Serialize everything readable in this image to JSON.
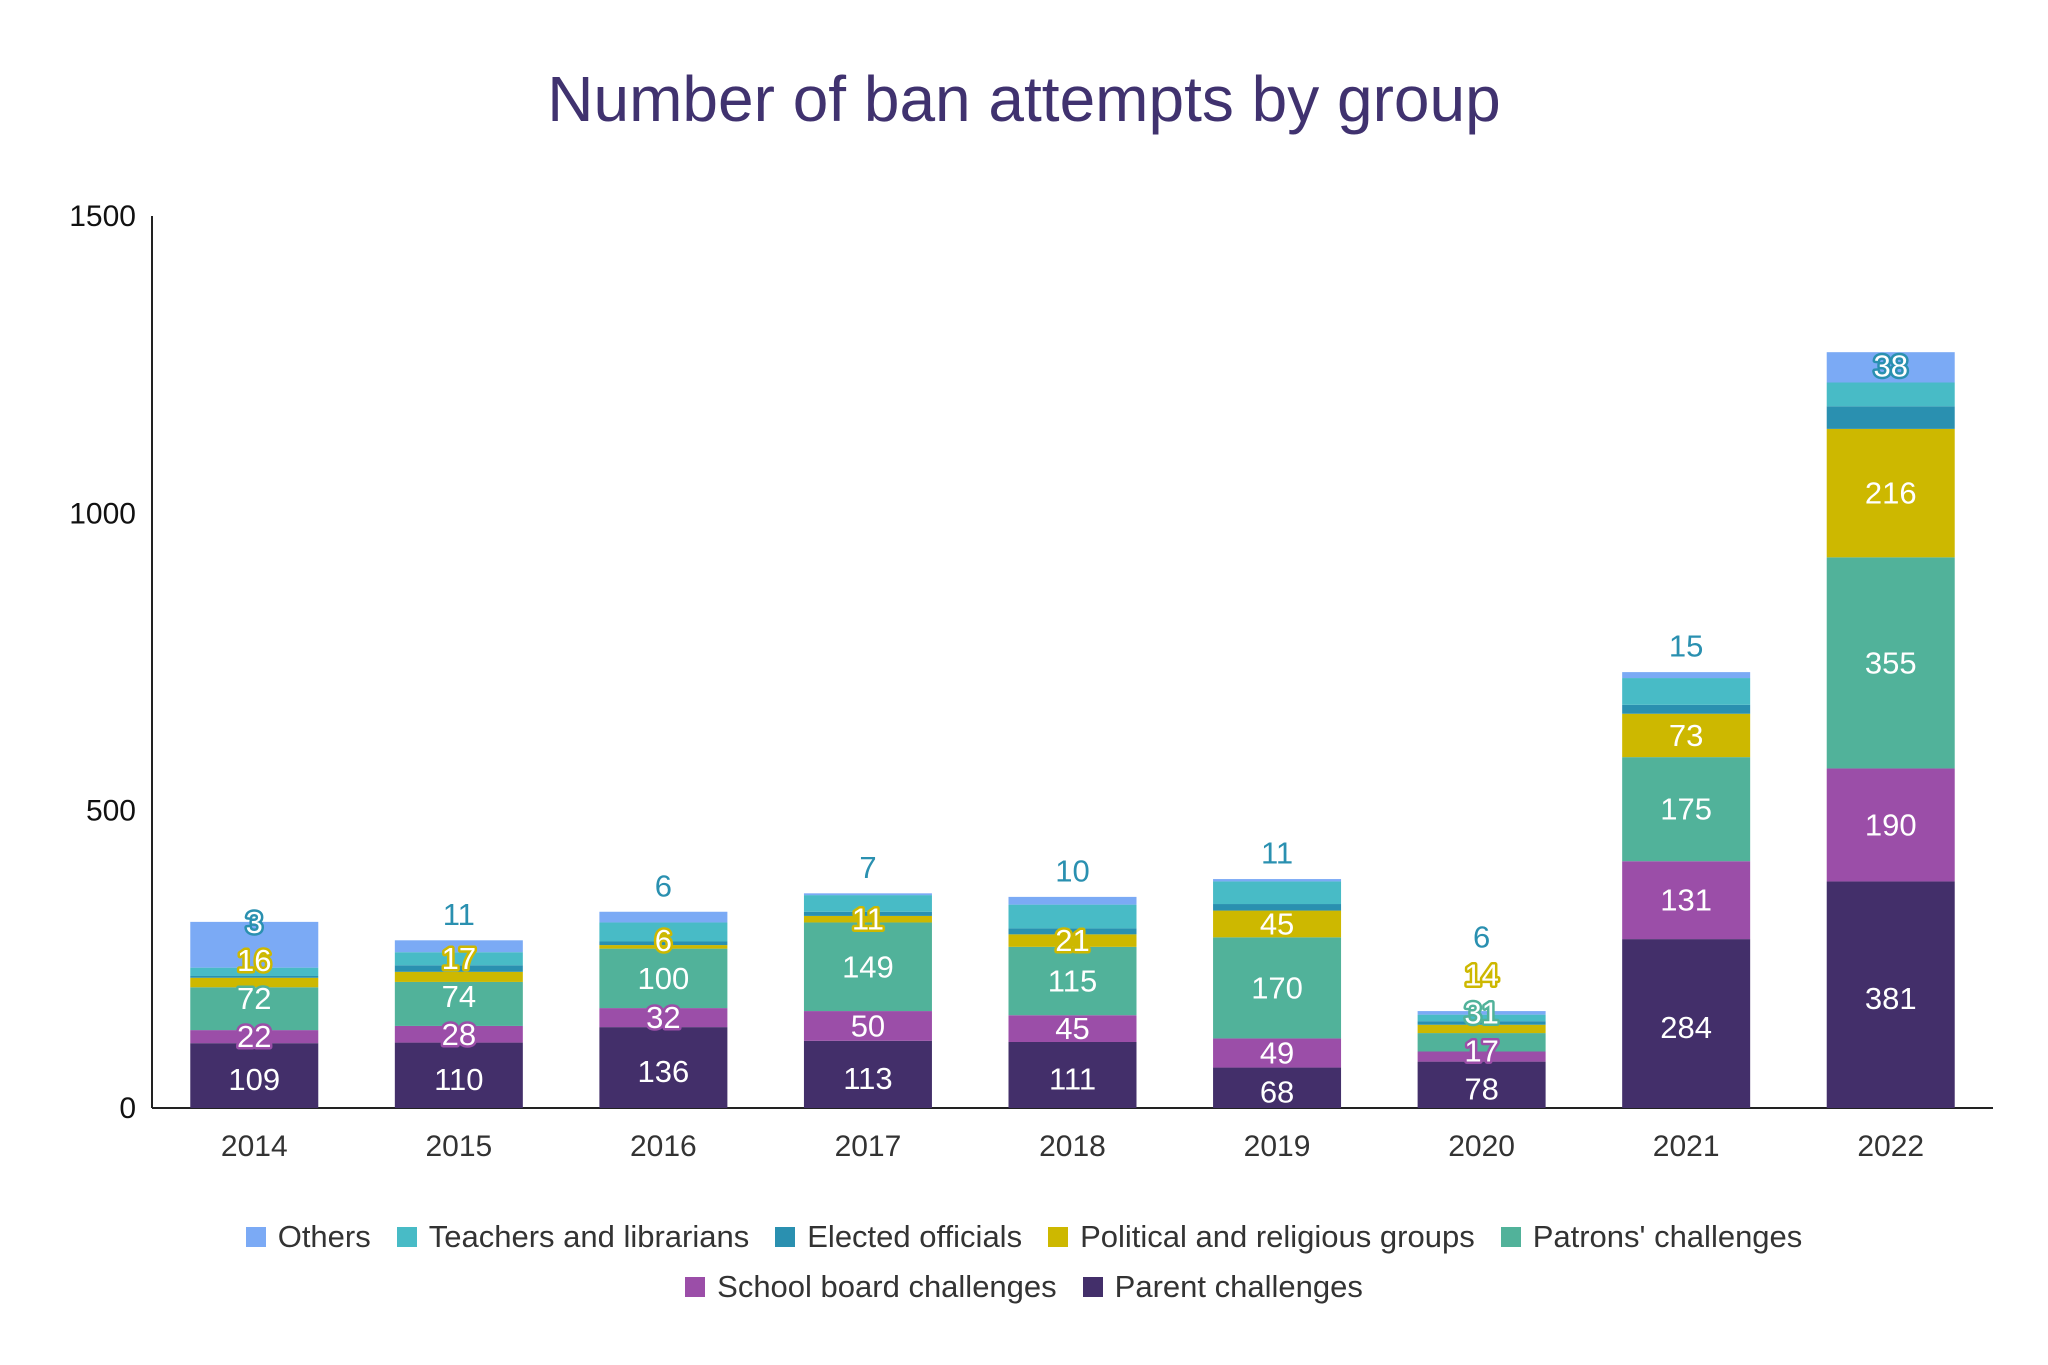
{
  "chart_data": {
    "type": "bar",
    "stacked": true,
    "title": "Number of ban attempts by group",
    "xlabel": "",
    "ylabel": "",
    "ylim": [
      0,
      1500
    ],
    "yticks": [
      0,
      500,
      1000,
      1500
    ],
    "grid": false,
    "legend_placement": "bottom",
    "categories": [
      "2014",
      "2015",
      "2016",
      "2017",
      "2018",
      "2019",
      "2020",
      "2021",
      "2022"
    ],
    "series": [
      {
        "name": "Parent challenges",
        "color": "#432f6a",
        "values": [
          109,
          110,
          136,
          113,
          111,
          68,
          78,
          284,
          381
        ],
        "labels": [
          "109",
          "110",
          "136",
          "113",
          "111",
          "68",
          "78",
          "284",
          "381"
        ]
      },
      {
        "name": "School board challenges",
        "color": "#9b4ea8",
        "values": [
          22,
          28,
          32,
          50,
          45,
          49,
          17,
          131,
          190
        ],
        "labels": [
          "22",
          "28",
          "32",
          "50",
          "45",
          "49",
          "17",
          "131",
          "190"
        ]
      },
      {
        "name": "Patrons' challenges",
        "color": "#51b29a",
        "values": [
          72,
          74,
          100,
          149,
          115,
          170,
          31,
          175,
          355
        ],
        "labels": [
          "72",
          "74",
          "100",
          "149",
          "115",
          "170",
          "31",
          "175",
          "355"
        ]
      },
      {
        "name": "Political and religious groups",
        "color": "#cdb800",
        "values": [
          16,
          17,
          6,
          11,
          21,
          45,
          14,
          73,
          216
        ],
        "labels": [
          "16",
          "17",
          "6",
          "11",
          "21",
          "45",
          "14",
          "73",
          "216"
        ]
      },
      {
        "name": "Elected officials",
        "color": "#2a90b0",
        "values": [
          3,
          11,
          6,
          7,
          10,
          11,
          6,
          15,
          38
        ],
        "labels": [
          "3",
          "11",
          "6",
          "7",
          "10",
          "11",
          "6",
          "15",
          "38"
        ]
      },
      {
        "name": "Teachers and librarians",
        "color": "#48bbc6",
        "values": [
          14,
          22,
          32,
          28,
          40,
          38,
          11,
          45,
          40
        ]
      },
      {
        "name": "Others",
        "color": "#7baaf5",
        "values": [
          77,
          20,
          18,
          3,
          13,
          4,
          6,
          10,
          51
        ]
      }
    ],
    "legend_order": [
      "Others",
      "Teachers and librarians",
      "Elected officials",
      "Political and religious groups",
      "Patrons' challenges",
      "School board challenges",
      "Parent challenges"
    ]
  }
}
